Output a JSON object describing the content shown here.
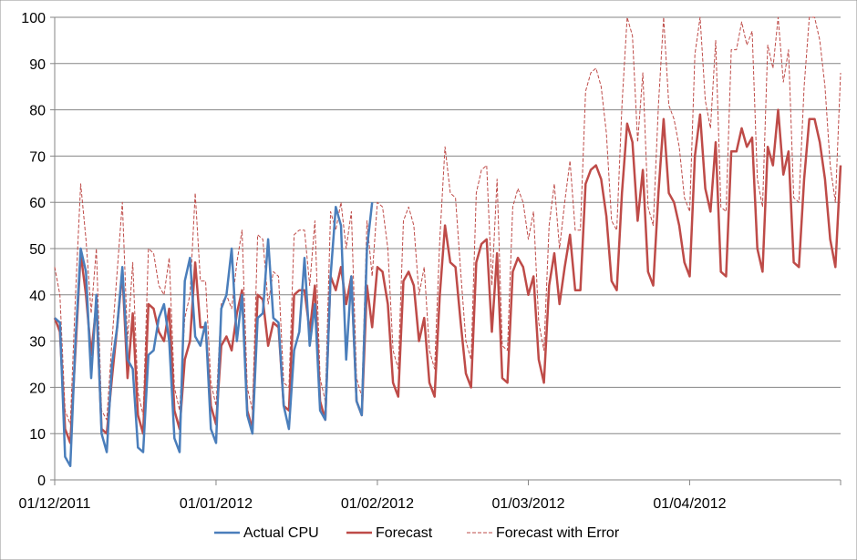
{
  "chart_data": {
    "type": "line",
    "title": "",
    "xlabel": "",
    "ylabel": "",
    "x_start": "2011-12-01",
    "x_end": "2012-04-30",
    "ylim": [
      0,
      100
    ],
    "y_ticks": [
      0,
      10,
      20,
      30,
      40,
      50,
      60,
      70,
      80,
      90,
      100
    ],
    "x_ticks": [
      {
        "date": "2011-12-01",
        "label": "01/12/2011"
      },
      {
        "date": "2012-01-01",
        "label": "01/01/2012"
      },
      {
        "date": "2012-02-01",
        "label": "01/02/2012"
      },
      {
        "date": "2012-03-01",
        "label": "01/03/2012"
      },
      {
        "date": "2012-04-01",
        "label": "01/04/2012"
      }
    ],
    "grid": "horizontal",
    "legend_position": "bottom",
    "series": [
      {
        "name": "Actual CPU",
        "color": "#4a7ebb",
        "style": "solid",
        "start": "2011-12-01",
        "values": [
          35,
          34,
          5,
          3,
          30,
          50,
          45,
          22,
          40,
          10,
          6,
          25,
          33,
          46,
          26,
          24,
          7,
          6,
          27,
          28,
          35,
          38,
          30,
          9,
          6,
          43,
          48,
          31,
          29,
          34,
          11,
          8,
          37,
          40,
          50,
          30,
          40,
          14,
          10,
          35,
          36,
          52,
          35,
          34,
          16,
          11,
          28,
          32,
          48,
          29,
          38,
          15,
          13,
          44,
          59,
          55,
          26,
          44,
          17,
          14,
          50,
          60
        ]
      },
      {
        "name": "Forecast",
        "color": "#be4b48",
        "style": "solid",
        "start": "2011-12-01",
        "values": [
          35,
          32,
          11,
          8,
          28,
          49,
          40,
          27,
          38,
          11,
          10,
          22,
          33,
          45,
          22,
          36,
          14,
          10,
          38,
          37,
          32,
          30,
          37,
          15,
          11,
          26,
          30,
          47,
          33,
          33,
          16,
          12,
          29,
          31,
          28,
          36,
          41,
          15,
          11,
          40,
          39,
          29,
          34,
          33,
          16,
          15,
          40,
          41,
          41,
          32,
          42,
          17,
          13,
          44,
          41,
          46,
          38,
          44,
          17,
          14,
          42,
          33,
          46,
          45,
          38,
          21,
          18,
          43,
          45,
          42,
          30,
          35,
          21,
          18,
          40,
          55,
          47,
          46,
          34,
          23,
          20,
          47,
          51,
          52,
          32,
          49,
          22,
          21,
          45,
          48,
          46,
          40,
          44,
          26,
          21,
          42,
          49,
          38,
          46,
          53,
          41,
          41,
          64,
          67,
          68,
          65,
          57,
          43,
          41,
          62,
          77,
          73,
          56,
          67,
          45,
          42,
          62,
          78,
          62,
          60,
          55,
          47,
          44,
          70,
          79,
          63,
          58,
          73,
          45,
          44,
          71,
          71,
          76,
          72,
          74,
          50,
          45,
          72,
          68,
          80,
          66,
          71,
          47,
          46,
          65,
          78,
          78,
          73,
          65,
          52,
          46,
          68
        ]
      },
      {
        "name": "Forecast with Error",
        "color": "#be4b48",
        "style": "dashed",
        "start": "2011-12-01",
        "values": [
          46,
          40,
          15,
          12,
          40,
          64,
          52,
          36,
          50,
          15,
          13,
          30,
          45,
          60,
          30,
          47,
          19,
          14,
          50,
          49,
          42,
          40,
          48,
          20,
          15,
          35,
          40,
          62,
          43,
          43,
          21,
          16,
          38,
          40,
          37,
          47,
          54,
          20,
          15,
          53,
          52,
          38,
          45,
          44,
          21,
          20,
          53,
          54,
          54,
          42,
          56,
          22,
          17,
          58,
          54,
          60,
          50,
          58,
          22,
          18,
          56,
          44,
          60,
          59,
          50,
          28,
          24,
          56,
          59,
          55,
          40,
          46,
          28,
          24,
          52,
          72,
          62,
          61,
          45,
          30,
          26,
          62,
          67,
          68,
          42,
          65,
          29,
          28,
          59,
          63,
          60,
          52,
          58,
          34,
          28,
          55,
          64,
          50,
          60,
          69,
          54,
          54,
          84,
          88,
          89,
          85,
          75,
          56,
          54,
          81,
          100,
          96,
          73,
          88,
          59,
          55,
          81,
          100,
          81,
          78,
          72,
          61,
          58,
          92,
          100,
          82,
          76,
          95,
          59,
          58,
          93,
          93,
          99,
          94,
          97,
          65,
          59,
          94,
          89,
          100,
          86,
          93,
          61,
          60,
          85,
          100,
          100,
          95,
          85,
          68,
          60,
          88
        ]
      }
    ]
  }
}
